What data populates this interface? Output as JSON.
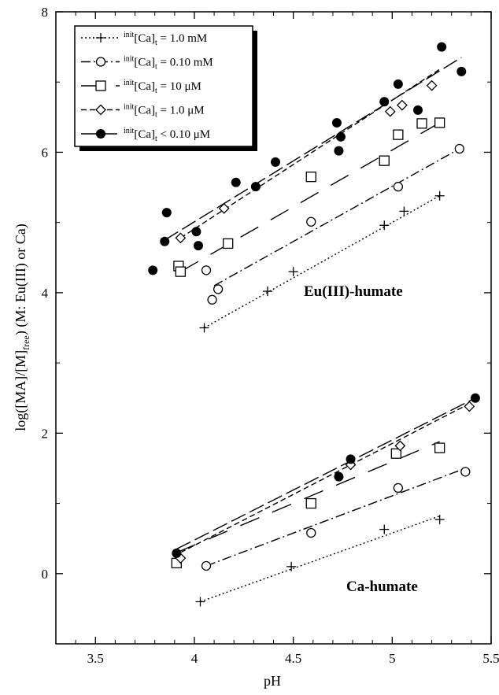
{
  "chart_data": {
    "type": "scatter",
    "xlabel": "pH",
    "ylabel_main": "log([MA]/[M]",
    "ylabel_sub": "free",
    "ylabel_tail": ")  (M: Eu(III) or Ca)",
    "xlim": [
      3.3,
      5.5
    ],
    "ylim": [
      -1,
      8
    ],
    "xticks": [
      3.5,
      4,
      4.5,
      5,
      5.5
    ],
    "xtick_labels": [
      "3.5",
      "4",
      "4.5",
      "5",
      "5.5"
    ],
    "yticks": [
      0,
      2,
      4,
      6,
      8
    ],
    "ytick_labels": [
      "0",
      "2",
      "4",
      "6",
      "8"
    ],
    "annotations": [
      "Eu(III)-humate",
      "Ca-humate"
    ],
    "legend_position": "top-left",
    "series": [
      {
        "sup": "init",
        "base": "[Ca]",
        "sub": "t",
        "tail": " = 1.0 mM",
        "marker": "plus",
        "dash": "2,3",
        "eu_points": [
          [
            4.05,
            3.5
          ],
          [
            4.37,
            4.02
          ],
          [
            4.5,
            4.3
          ],
          [
            4.96,
            4.96
          ],
          [
            5.06,
            5.16
          ],
          [
            5.24,
            5.38
          ]
        ],
        "eu_fit": [
          [
            4.05,
            3.5
          ],
          [
            5.24,
            5.38
          ]
        ],
        "ca_points": [
          [
            4.03,
            -0.4
          ],
          [
            4.49,
            0.1
          ],
          [
            4.96,
            0.63
          ],
          [
            5.24,
            0.77
          ]
        ],
        "ca_fit": [
          [
            4.03,
            -0.4
          ],
          [
            5.24,
            0.82
          ]
        ]
      },
      {
        "sup": "init",
        "base": "[Ca]",
        "sub": "t",
        "tail": " = 0.10 mM",
        "marker": "circle",
        "dash": "12,4,2,4",
        "eu_points": [
          [
            4.06,
            4.32
          ],
          [
            4.09,
            3.9
          ],
          [
            4.12,
            4.05
          ],
          [
            4.59,
            5.01
          ],
          [
            5.03,
            5.51
          ],
          [
            5.34,
            6.05
          ]
        ],
        "eu_fit": [
          [
            4.1,
            4.1
          ],
          [
            5.34,
            6.05
          ]
        ],
        "ca_points": [
          [
            4.06,
            0.11
          ],
          [
            4.59,
            0.58
          ],
          [
            5.03,
            1.22
          ],
          [
            5.37,
            1.45
          ]
        ],
        "ca_fit": [
          [
            4.06,
            0.11
          ],
          [
            5.37,
            1.5
          ]
        ]
      },
      {
        "sup": "init",
        "base": "[Ca]",
        "sub": "t",
        "tail": " = 10 μM",
        "marker": "square",
        "dash": "26,18",
        "eu_points": [
          [
            3.92,
            4.38
          ],
          [
            3.93,
            4.3
          ],
          [
            4.17,
            4.7
          ],
          [
            4.59,
            5.65
          ],
          [
            4.96,
            5.88
          ],
          [
            5.03,
            6.25
          ],
          [
            5.15,
            6.41
          ],
          [
            5.24,
            6.42
          ]
        ],
        "eu_fit": [
          [
            3.93,
            4.3
          ],
          [
            5.24,
            6.42
          ]
        ],
        "ca_points": [
          [
            3.91,
            0.15
          ],
          [
            4.59,
            1.0
          ],
          [
            5.02,
            1.71
          ],
          [
            5.24,
            1.79
          ]
        ],
        "ca_fit": [
          [
            3.91,
            0.3
          ],
          [
            5.24,
            1.88
          ]
        ]
      },
      {
        "sup": "init",
        "base": "[Ca]",
        "sub": "t",
        "tail": " = 1.0 μM",
        "marker": "diamond",
        "dash": "7,4",
        "eu_points": [
          [
            3.93,
            4.78
          ],
          [
            4.15,
            5.2
          ],
          [
            4.99,
            6.58
          ],
          [
            5.05,
            6.67
          ],
          [
            5.2,
            6.95
          ]
        ],
        "eu_fit": [
          [
            3.93,
            4.78
          ],
          [
            5.25,
            7.2
          ]
        ],
        "ca_points": [
          [
            3.93,
            0.22
          ],
          [
            4.79,
            1.55
          ],
          [
            5.04,
            1.82
          ],
          [
            5.39,
            2.38
          ]
        ],
        "ca_fit": [
          [
            3.93,
            0.3
          ],
          [
            5.39,
            2.42
          ]
        ]
      },
      {
        "sup": "init",
        "base": "[Ca]",
        "sub": "t",
        "tail": " < 0.10 μM",
        "marker": "filled-circle",
        "dash": "20,6",
        "eu_points": [
          [
            3.79,
            4.32
          ],
          [
            3.85,
            4.73
          ],
          [
            3.86,
            5.14
          ],
          [
            4.01,
            4.87
          ],
          [
            4.02,
            4.67
          ],
          [
            4.21,
            5.57
          ],
          [
            4.31,
            5.51
          ],
          [
            4.41,
            5.86
          ],
          [
            4.72,
            6.42
          ],
          [
            4.73,
            6.02
          ],
          [
            4.74,
            6.22
          ],
          [
            4.96,
            6.72
          ],
          [
            5.03,
            6.97
          ],
          [
            5.13,
            6.6
          ],
          [
            5.25,
            7.5
          ],
          [
            5.35,
            7.15
          ]
        ],
        "eu_fit": [
          [
            3.85,
            4.75
          ],
          [
            5.35,
            7.35
          ]
        ],
        "ca_points": [
          [
            3.91,
            0.29
          ],
          [
            4.73,
            1.38
          ],
          [
            4.79,
            1.63
          ],
          [
            5.42,
            2.5
          ]
        ],
        "ca_fit": [
          [
            3.91,
            0.35
          ],
          [
            5.42,
            2.5
          ]
        ]
      }
    ]
  }
}
